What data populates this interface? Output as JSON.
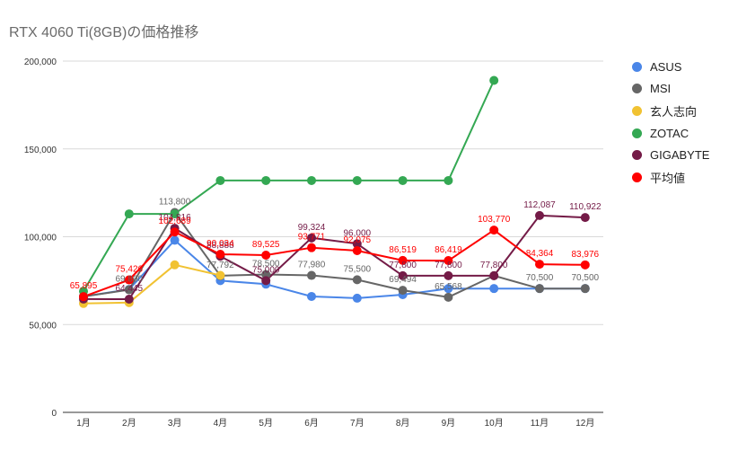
{
  "chart_data": {
    "type": "line",
    "title": "RTX 4060 Ti(8GB)の価格推移",
    "xlabel": "",
    "ylabel": "",
    "ylim": [
      0,
      200000
    ],
    "yticks": [
      0,
      50000,
      100000,
      150000,
      200000
    ],
    "ytick_labels": [
      "0",
      "50,000",
      "100,000",
      "150,000",
      "200,000"
    ],
    "categories": [
      "1月",
      "2月",
      "3月",
      "4月",
      "5月",
      "6月",
      "7月",
      "8月",
      "9月",
      "10月",
      "11月",
      "12月"
    ],
    "grid": true,
    "legend_position": "right",
    "series": [
      {
        "name": "ASUS",
        "color": "#4a86e8",
        "values": [
          66000,
          70000,
          98000,
          75000,
          73000,
          66000,
          65000,
          67000,
          70500,
          70500,
          70500,
          70500
        ],
        "labels": [
          "",
          "",
          "",
          "",
          "",
          "",
          "",
          "",
          "",
          "",
          "",
          ""
        ]
      },
      {
        "name": "MSI",
        "color": "#666666",
        "values": [
          66000,
          69800,
          113800,
          77792,
          78500,
          77980,
          75500,
          69494,
          65568,
          77800,
          70500,
          70500
        ],
        "labels": [
          "",
          "69,800",
          "113,800",
          "77,792",
          "78,500",
          "77,980",
          "75,500",
          "69,494",
          "65,568",
          "",
          "70,500",
          "70,500"
        ]
      },
      {
        "name": "玄人志向",
        "color": "#f1c232",
        "values": [
          62000,
          62500,
          84000,
          78000,
          null,
          null,
          null,
          null,
          null,
          null,
          null,
          null
        ],
        "labels": [
          "",
          "",
          "",
          "",
          "",
          "",
          "",
          "",
          "",
          "",
          "",
          ""
        ]
      },
      {
        "name": "ZOTAC",
        "color": "#34a853",
        "values": [
          69000,
          113000,
          113000,
          132000,
          132000,
          132000,
          132000,
          132000,
          132000,
          189000,
          null,
          null
        ],
        "labels": [
          "",
          "",
          "",
          "",
          "",
          "",
          "",
          "",
          "",
          "",
          "",
          ""
        ]
      },
      {
        "name": "GIGABYTE",
        "color": "#741b47",
        "values": [
          64500,
          64445,
          104816,
          88888,
          75000,
          99324,
          96000,
          77800,
          77800,
          77800,
          112087,
          110922
        ],
        "labels": [
          "",
          "64,445",
          "104,816",
          "88,888",
          "75,000",
          "99,324",
          "96,000",
          "77,800",
          "77,800",
          "77,800",
          "112,087",
          "110,922"
        ]
      },
      {
        "name": "平均値",
        "color": "#ff0000",
        "values": [
          65895,
          75426,
          102689,
          90034,
          89525,
          93771,
          92075,
          86519,
          86419,
          103770,
          84364,
          83976
        ],
        "labels": [
          "65,895",
          "75,426",
          "102,689",
          "90,034",
          "89,525",
          "93,771",
          "92,075",
          "86,519",
          "86,419",
          "103,770",
          "84,364",
          "83,976"
        ]
      }
    ]
  }
}
